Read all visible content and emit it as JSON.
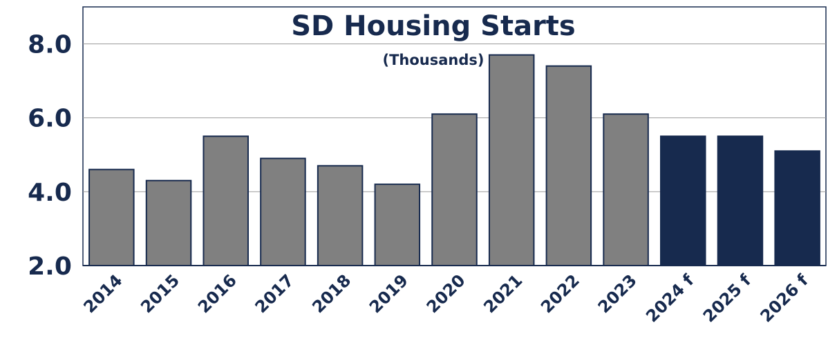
{
  "chart_data": {
    "type": "bar",
    "title": "SD Housing Starts",
    "subtitle": "(Thousands)",
    "categories": [
      "2014",
      "2015",
      "2016",
      "2017",
      "2018",
      "2019",
      "2020",
      "2021",
      "2022",
      "2023",
      "2024 f",
      "2025 f",
      "2026 f"
    ],
    "values": [
      4.6,
      4.3,
      5.5,
      4.9,
      4.7,
      4.2,
      6.1,
      7.7,
      7.4,
      6.1,
      5.5,
      5.5,
      5.1
    ],
    "colors": [
      "#808080",
      "#808080",
      "#808080",
      "#808080",
      "#808080",
      "#808080",
      "#808080",
      "#808080",
      "#808080",
      "#808080",
      "#172a4e",
      "#172a4e",
      "#172a4e"
    ],
    "ylim": [
      2,
      9
    ],
    "yticks": [
      {
        "value": 2,
        "label": "2.0"
      },
      {
        "value": 4,
        "label": "4.0"
      },
      {
        "value": 6,
        "label": "6.0"
      },
      {
        "value": 8,
        "label": "8.0"
      }
    ],
    "grid": true
  }
}
